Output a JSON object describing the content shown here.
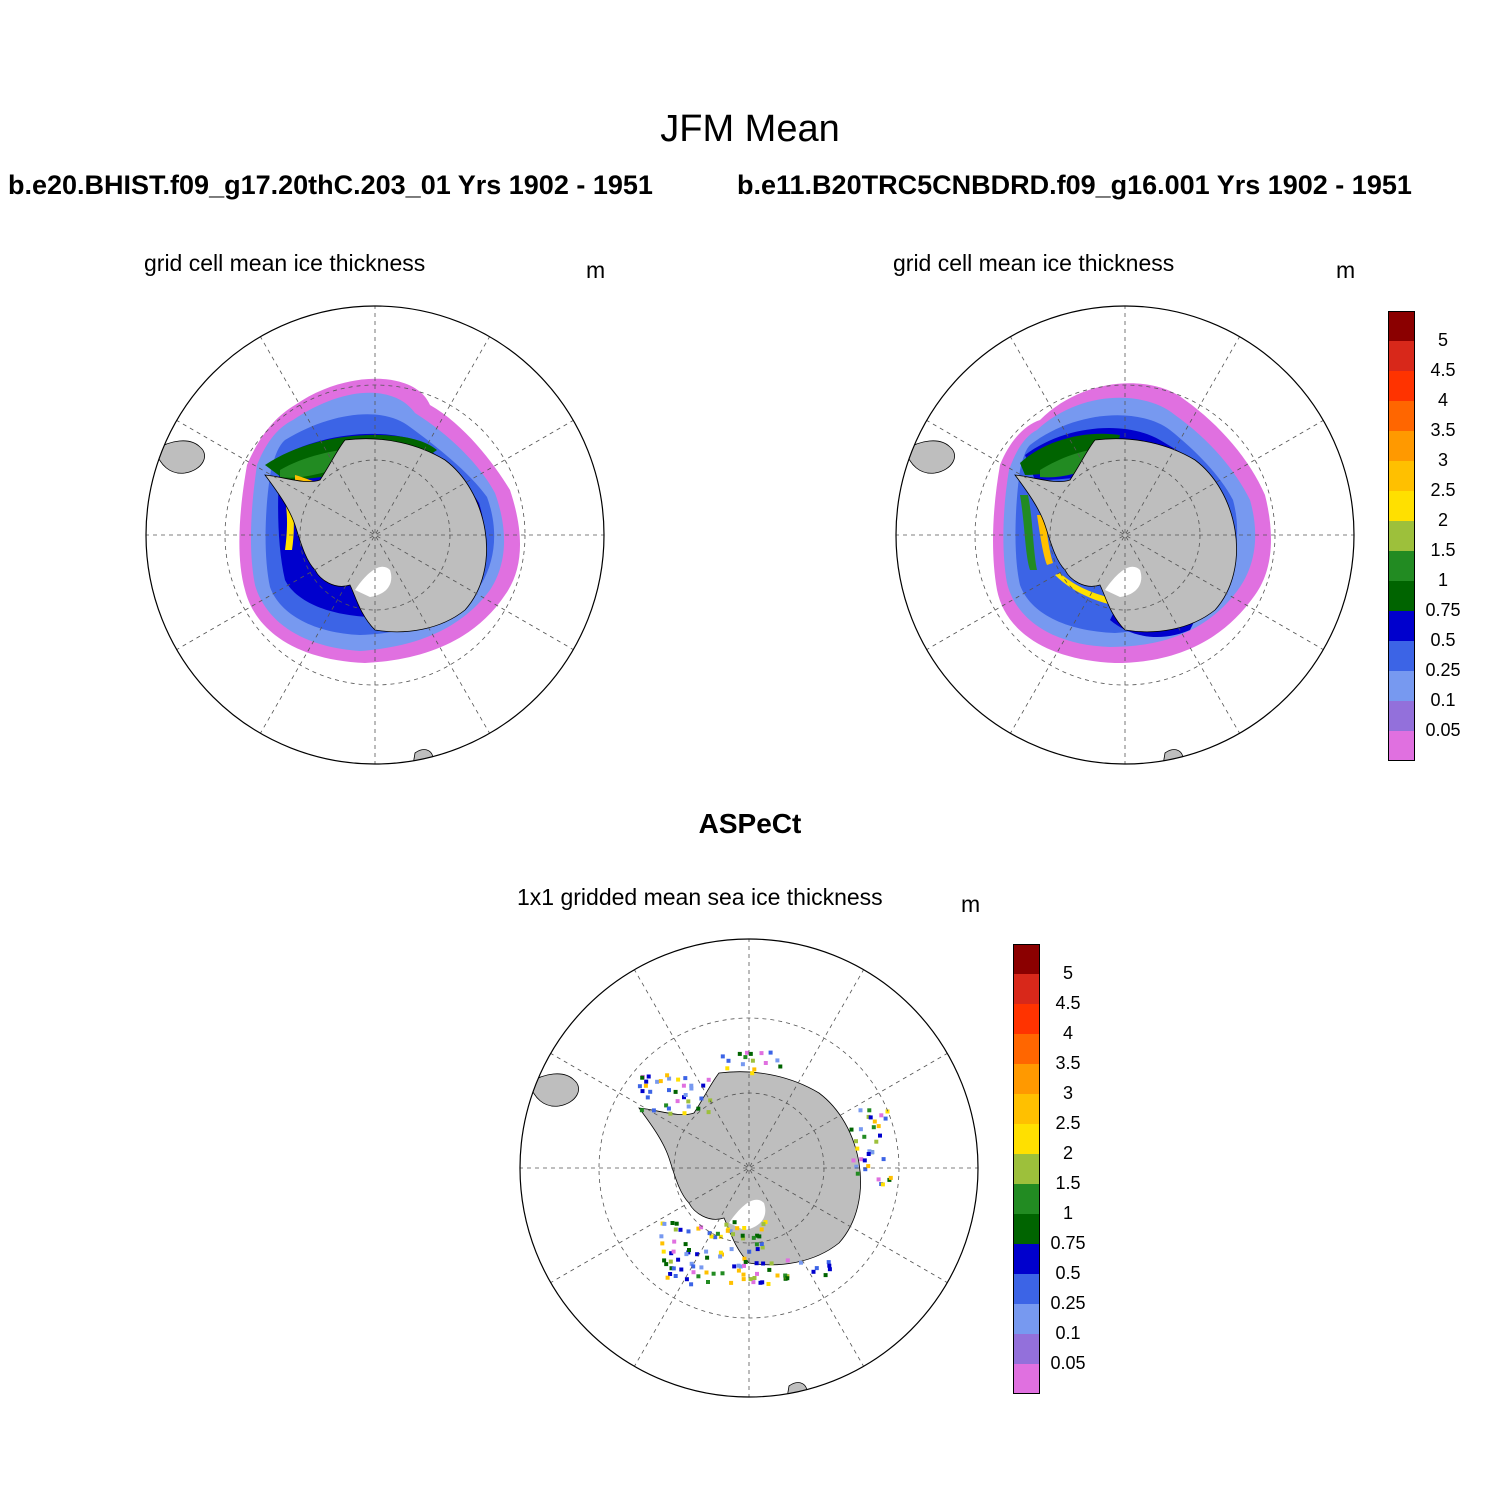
{
  "figure": {
    "title": "JFM Mean",
    "colorbar": {
      "levels": [
        "5",
        "4.5",
        "4",
        "3.5",
        "3",
        "2.5",
        "2",
        "1.5",
        "1",
        "0.75",
        "0.5",
        "0.25",
        "0.1",
        "0.05"
      ],
      "colors": [
        "#8b0000",
        "#d8281a",
        "#ff3300",
        "#ff6600",
        "#ff9900",
        "#ffc000",
        "#ffe000",
        "#9dc03b",
        "#228b22",
        "#006400",
        "#0000cd",
        "#3c64e6",
        "#7799f0",
        "#9370db",
        "#e070e0"
      ]
    }
  },
  "panels": {
    "model_a": {
      "run_title": "b.e20.BHIST.f09_g17.20thC.203_01  Yrs 1902 - 1951",
      "variable": "grid cell mean ice thickness",
      "unit": "m"
    },
    "model_b": {
      "run_title": "b.e11.B20TRC5CNBDRD.f09_g16.001  Yrs 1902 - 1951",
      "variable": "grid cell mean ice thickness",
      "unit": "m"
    },
    "observations": {
      "source_title": "ASPeCt",
      "variable": "1x1 gridded mean sea ice thickness",
      "unit": "m"
    }
  },
  "chart_data": {
    "type": "heatmap",
    "projection": "south polar stereographic",
    "region": "Antarctica / Southern Ocean",
    "season": "JFM",
    "contour_levels_m": [
      0.05,
      0.1,
      0.25,
      0.5,
      0.75,
      1,
      1.5,
      2,
      2.5,
      3,
      3.5,
      4,
      4.5,
      5
    ],
    "panels": [
      {
        "name": "b.e20.BHIST.f09_g17.20thC.203_01",
        "years": "1902 - 1951",
        "field": "grid cell mean ice thickness",
        "units": "m"
      },
      {
        "name": "b.e11.B20TRC5CNBDRD.f09_g16.001",
        "years": "1902 - 1951",
        "field": "grid cell mean ice thickness",
        "units": "m"
      },
      {
        "name": "ASPeCt",
        "field": "1x1 gridded mean sea ice thickness",
        "units": "m"
      }
    ]
  }
}
